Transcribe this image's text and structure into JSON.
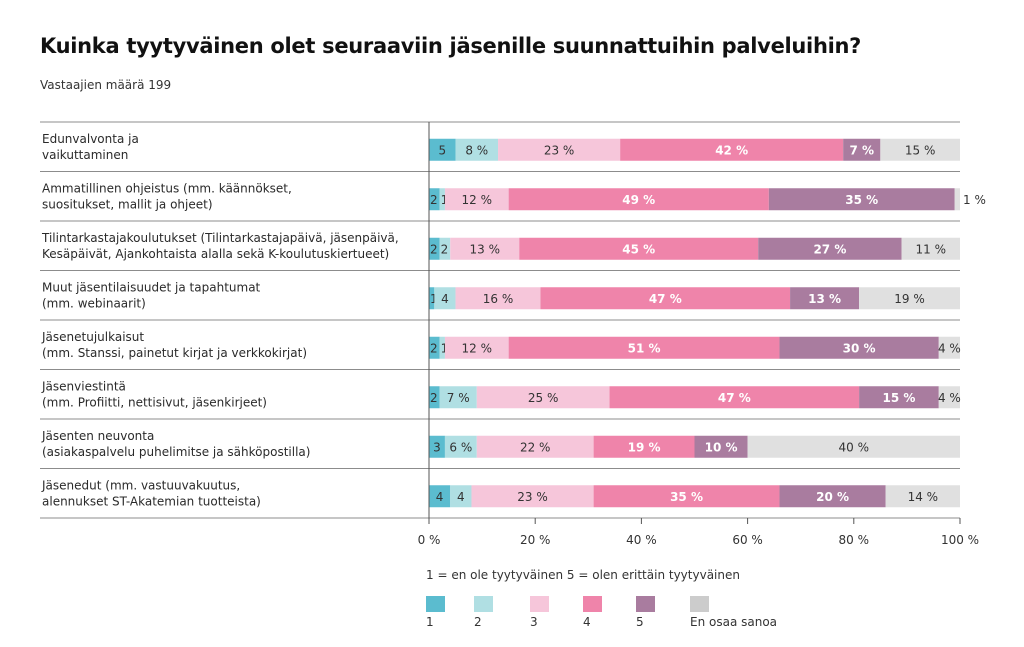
{
  "chart_data": {
    "type": "bar",
    "orientation": "horizontal",
    "stacked": true,
    "title": "Kuinka tyytyväinen olet seuraaviin jäsenille suunnattuihin palveluihin?",
    "subtitle": "Vastaajien määrä 199",
    "xlabel": "",
    "ylabel": "",
    "xlim": [
      0,
      100
    ],
    "x_ticks": [
      "0 %",
      "20 %",
      "40 %",
      "60 %",
      "80 %",
      "100 %"
    ],
    "x_tick_values": [
      0,
      20,
      40,
      60,
      80,
      100
    ],
    "grid": false,
    "legend_placement": "bottom",
    "legend_caption": "1 = en ole tyytyväinen  5 = olen erittäin tyytyväinen",
    "categories": [
      [
        "Edunvalvonta ja",
        "vaikuttaminen"
      ],
      [
        "Ammatillinen ohjeistus (mm. käännökset,",
        "suositukset, mallit ja ohjeet)"
      ],
      [
        "Tilintarkastajakoulutukset (Tilintarkastajapäivä, jäsenpäivä,",
        "Kesäpäivät, Ajankohtaista alalla sekä K-koulutuskiertueet)"
      ],
      [
        "Muut jäsentilaisuudet ja tapahtumat",
        "(mm. webinaarit)"
      ],
      [
        "Jäsenetujulkaisut",
        "(mm. Stanssi, painetut kirjat ja verkkokirjat)"
      ],
      [
        "Jäsenviestintä",
        "(mm. Profiitti, nettisivut, jäsenkirjeet)"
      ],
      [
        "Jäsenten neuvonta",
        "(asiakaspalvelu puhelimitse ja sähköpostilla)"
      ],
      [
        "Jäsenedut (mm. vastuuvakuutus,",
        "alennukset ST-Akatemian tuotteista)"
      ]
    ],
    "series": [
      {
        "name": "1",
        "color": "#5bbccf",
        "text_color": "#333333",
        "values": [
          5,
          2,
          2,
          1,
          2,
          2,
          3,
          4
        ],
        "labels": [
          "5",
          "2",
          "2",
          "1",
          "2",
          "2",
          "3",
          "4"
        ]
      },
      {
        "name": "2",
        "color": "#b0dfe3",
        "text_color": "#333333",
        "values": [
          8,
          1,
          2,
          4,
          1,
          7,
          6,
          4
        ],
        "labels": [
          "8 %",
          "1",
          "2",
          "4",
          "1",
          "7 %",
          "6 %",
          "4"
        ]
      },
      {
        "name": "3",
        "color": "#f6c6da",
        "text_color": "#333333",
        "values": [
          23,
          12,
          13,
          16,
          12,
          25,
          22,
          23
        ],
        "labels": [
          "23 %",
          "12 %",
          "13 %",
          "16 %",
          "12 %",
          "25 %",
          "22 %",
          "23 %"
        ]
      },
      {
        "name": "4",
        "color": "#ef84aa",
        "text_color": "#ffffff",
        "values": [
          42,
          49,
          45,
          47,
          51,
          47,
          19,
          35
        ],
        "labels": [
          "42 %",
          "49 %",
          "45 %",
          "47 %",
          "51 %",
          "47 %",
          "19 %",
          "35 %"
        ]
      },
      {
        "name": "5",
        "color": "#a97c9f",
        "text_color": "#ffffff",
        "values": [
          7,
          35,
          27,
          13,
          30,
          15,
          10,
          20
        ],
        "labels": [
          "7 %",
          "35 %",
          "27 %",
          "13 %",
          "30 %",
          "15 %",
          "10 %",
          "20 %"
        ]
      },
      {
        "name": "En osaa sanoa",
        "color": "#e0e0e0",
        "legend_color": "#cccccc",
        "text_color": "#333333",
        "values": [
          15,
          1,
          11,
          19,
          4,
          4,
          40,
          14
        ],
        "labels": [
          "15 %",
          "1 %",
          "11 %",
          "19 %",
          "4 %",
          "4 %",
          "40 %",
          "14 %"
        ]
      }
    ]
  }
}
